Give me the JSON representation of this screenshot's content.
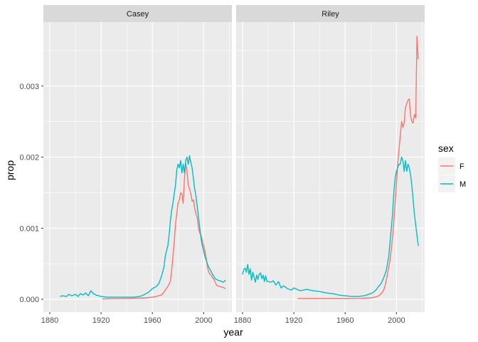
{
  "chart_data": {
    "type": "line",
    "xlabel": "year",
    "ylabel": "prop",
    "xlim": [
      1875,
      2022
    ],
    "ylim": [
      -0.00018,
      0.0039
    ],
    "x_ticks": [
      1880,
      1920,
      1960,
      2000
    ],
    "x_tick_labels": [
      "1880",
      "1920",
      "1960",
      "2000"
    ],
    "y_ticks": [
      0,
      0.001,
      0.002,
      0.003
    ],
    "y_tick_labels": [
      "0.000",
      "0.001",
      "0.002",
      "0.003"
    ],
    "grid": true,
    "legend": {
      "title": "sex",
      "position": "right",
      "entries": [
        {
          "label": "F",
          "color": "#F8766D"
        },
        {
          "label": "M",
          "color": "#00BFC4"
        }
      ]
    },
    "panels": [
      {
        "title": "Casey",
        "series": [
          {
            "name": "F",
            "color": "#F8766D",
            "x": [
              1921,
              1930,
              1940,
              1948,
              1955,
              1960,
              1963,
              1965,
              1967,
              1969,
              1970,
              1972,
              1974,
              1975,
              1976,
              1977,
              1978,
              1979,
              1980,
              1981,
              1982,
              1983,
              1984,
              1985,
              1986,
              1987,
              1988,
              1989,
              1990,
              1991,
              1992,
              1993,
              1994,
              1995,
              1996,
              1997,
              1998,
              1999,
              2000,
              2001,
              2002,
              2003,
              2004,
              2005,
              2006,
              2007,
              2008,
              2009,
              2010,
              2011,
              2012,
              2013,
              2014,
              2015,
              2016,
              2017
            ],
            "y": [
              5e-06,
              8e-06,
              1e-05,
              1.5e-05,
              2e-05,
              3e-05,
              4e-05,
              5e-05,
              6e-05,
              0.0001,
              0.00013,
              0.00018,
              0.00025,
              0.0004,
              0.0006,
              0.0008,
              0.00105,
              0.0012,
              0.00135,
              0.0014,
              0.0015,
              0.00148,
              0.00135,
              0.0017,
              0.00192,
              0.0018,
              0.0016,
              0.00155,
              0.00148,
              0.00138,
              0.0014,
              0.00128,
              0.0012,
              0.00115,
              0.001,
              0.00093,
              0.0009,
              0.00082,
              0.00075,
              0.00068,
              0.00058,
              0.00045,
              0.00038,
              0.00035,
              0.00033,
              0.0003,
              0.00028,
              0.00024,
              0.0002,
              0.00019,
              0.00018,
              0.00018,
              0.00017,
              0.00017,
              0.00016,
              0.00015
            ]
          },
          {
            "name": "M",
            "color": "#00BFC4",
            "x": [
              1888,
              1890,
              1893,
              1895,
              1897,
              1900,
              1902,
              1904,
              1906,
              1908,
              1910,
              1912,
              1914,
              1916,
              1918,
              1920,
              1925,
              1930,
              1935,
              1940,
              1945,
              1950,
              1953,
              1955,
              1957,
              1960,
              1963,
              1965,
              1967,
              1969,
              1970,
              1971,
              1972,
              1973,
              1974,
              1975,
              1976,
              1977,
              1978,
              1979,
              1980,
              1981,
              1982,
              1983,
              1984,
              1985,
              1986,
              1987,
              1988,
              1989,
              1990,
              1991,
              1992,
              1993,
              1994,
              1995,
              1996,
              1997,
              1998,
              1999,
              2000,
              2001,
              2002,
              2003,
              2004,
              2005,
              2006,
              2007,
              2008,
              2009,
              2010,
              2011,
              2012,
              2013,
              2014,
              2015,
              2016,
              2017
            ],
            "y": [
              4e-05,
              5e-05,
              4e-05,
              7e-05,
              5e-05,
              7e-05,
              4e-05,
              8e-05,
              6e-05,
              9e-05,
              5e-05,
              0.00012,
              8e-05,
              6e-05,
              5e-05,
              4e-05,
              3e-05,
              3e-05,
              3e-05,
              3e-05,
              3e-05,
              4e-05,
              6e-05,
              8e-05,
              0.0001,
              0.00015,
              0.00018,
              0.00022,
              0.00032,
              0.00045,
              0.0006,
              0.00068,
              0.00075,
              0.0009,
              0.0011,
              0.00125,
              0.00135,
              0.00148,
              0.0016,
              0.00182,
              0.0019,
              0.00185,
              0.00195,
              0.00178,
              0.0019,
              0.00178,
              0.00195,
              0.002,
              0.0019,
              0.00202,
              0.00192,
              0.00185,
              0.0017,
              0.00155,
              0.00145,
              0.0013,
              0.00115,
              0.001,
              0.00085,
              0.00075,
              0.00068,
              0.0006,
              0.00055,
              0.0005,
              0.00045,
              0.00042,
              0.00038,
              0.00035,
              0.00032,
              0.00029,
              0.00028,
              0.00027,
              0.00026,
              0.00026,
              0.00025,
              0.00024,
              0.00025,
              0.00027
            ]
          }
        ]
      },
      {
        "title": "Riley",
        "series": [
          {
            "name": "F",
            "color": "#F8766D",
            "x": [
              1923,
              1930,
              1940,
              1950,
              1960,
              1970,
              1975,
              1980,
              1983,
              1985,
              1987,
              1989,
              1990,
              1991,
              1992,
              1993,
              1994,
              1995,
              1996,
              1997,
              1998,
              1999,
              2000,
              2001,
              2002,
              2003,
              2004,
              2005,
              2006,
              2007,
              2008,
              2009,
              2010,
              2011,
              2012,
              2013,
              2014,
              2015,
              2016,
              2017
            ],
            "y": [
              1e-05,
              1e-05,
              1e-05,
              1e-05,
              1e-05,
              1.2e-05,
              1.5e-05,
              2e-05,
              3e-05,
              4e-05,
              6e-05,
              0.0001,
              0.00013,
              0.00018,
              0.00026,
              0.00035,
              0.00045,
              0.00055,
              0.0007,
              0.00088,
              0.0011,
              0.00135,
              0.00162,
              0.0019,
              0.0021,
              0.0023,
              0.0025,
              0.00242,
              0.00248,
              0.0027,
              0.00275,
              0.0028,
              0.00282,
              0.00258,
              0.0025,
              0.00248,
              0.0026,
              0.00255,
              0.0037,
              0.00338
            ]
          },
          {
            "name": "M",
            "color": "#00BFC4",
            "x": [
              1880,
              1881,
              1882,
              1883,
              1884,
              1885,
              1886,
              1887,
              1888,
              1889,
              1890,
              1891,
              1892,
              1893,
              1894,
              1895,
              1896,
              1897,
              1898,
              1899,
              1900,
              1902,
              1904,
              1906,
              1908,
              1910,
              1912,
              1915,
              1918,
              1920,
              1925,
              1930,
              1935,
              1940,
              1945,
              1950,
              1955,
              1960,
              1965,
              1970,
              1975,
              1980,
              1982,
              1984,
              1986,
              1988,
              1990,
              1992,
              1994,
              1995,
              1996,
              1997,
              1998,
              1999,
              2000,
              2001,
              2002,
              2003,
              2004,
              2005,
              2006,
              2007,
              2008,
              2009,
              2010,
              2011,
              2012,
              2013,
              2014,
              2015,
              2016,
              2017
            ],
            "y": [
              0.00035,
              0.00042,
              0.00044,
              0.00038,
              0.00049,
              0.00035,
              0.00043,
              0.00027,
              0.00038,
              0.00031,
              0.00024,
              0.00034,
              0.00028,
              0.00035,
              0.00037,
              0.00029,
              0.00034,
              0.00025,
              0.00033,
              0.00025,
              0.00025,
              0.00024,
              0.00026,
              0.0002,
              0.00025,
              0.00016,
              0.00019,
              0.00015,
              0.00013,
              0.00016,
              0.00012,
              0.00014,
              0.00012,
              0.00011,
              9e-05,
              8e-05,
              6e-05,
              5e-05,
              4e-05,
              4e-05,
              5e-05,
              8e-05,
              0.0001,
              0.00013,
              0.00018,
              0.00022,
              0.0003,
              0.0004,
              0.0006,
              0.0008,
              0.001,
              0.0012,
              0.0015,
              0.0017,
              0.0018,
              0.00185,
              0.0019,
              0.0019,
              0.002,
              0.00195,
              0.0018,
              0.00195,
              0.0018,
              0.0019,
              0.00185,
              0.00175,
              0.0016,
              0.0014,
              0.0012,
              0.00105,
              0.0009,
              0.00075
            ]
          }
        ]
      }
    ]
  }
}
